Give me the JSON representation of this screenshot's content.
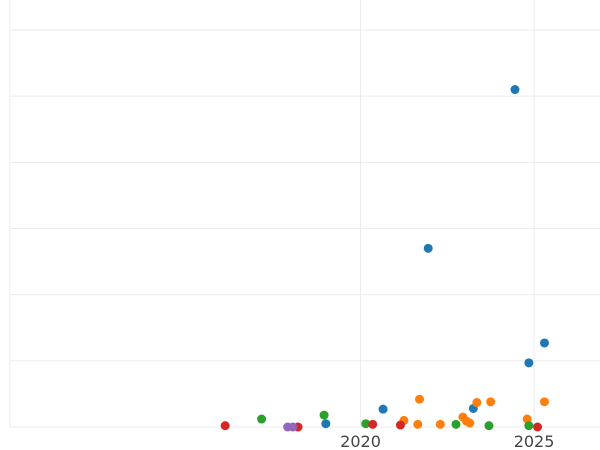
{
  "chart_data": {
    "type": "scatter",
    "title": "",
    "xlabel": "",
    "ylabel": "",
    "xlim": [
      2009.9,
      2026.9
    ],
    "ylim": [
      0,
      6.45
    ],
    "grid": true,
    "legend": "none",
    "x_ticks": [
      2020,
      2025
    ],
    "x_tick_labels": [
      "2020",
      "2025"
    ],
    "y_gridlines": [
      0,
      1,
      2,
      3,
      4,
      5,
      6
    ],
    "series": [
      {
        "color": "#1f77b4",
        "points": [
          {
            "x": 2019.0,
            "y": 0.05
          },
          {
            "x": 2020.65,
            "y": 0.27
          },
          {
            "x": 2021.95,
            "y": 2.7
          },
          {
            "x": 2023.25,
            "y": 0.28
          },
          {
            "x": 2024.45,
            "y": 5.1
          },
          {
            "x": 2024.85,
            "y": 0.97
          },
          {
            "x": 2025.3,
            "y": 1.27
          }
        ]
      },
      {
        "color": "#ff7f0e",
        "points": [
          {
            "x": 2021.25,
            "y": 0.1
          },
          {
            "x": 2021.7,
            "y": 0.42
          },
          {
            "x": 2021.65,
            "y": 0.04
          },
          {
            "x": 2022.3,
            "y": 0.04
          },
          {
            "x": 2022.95,
            "y": 0.15
          },
          {
            "x": 2023.05,
            "y": 0.09
          },
          {
            "x": 2023.15,
            "y": 0.06
          },
          {
            "x": 2023.35,
            "y": 0.37
          },
          {
            "x": 2023.75,
            "y": 0.38
          },
          {
            "x": 2024.8,
            "y": 0.12
          },
          {
            "x": 2025.3,
            "y": 0.38
          }
        ]
      },
      {
        "color": "#2ca02c",
        "points": [
          {
            "x": 2017.15,
            "y": 0.12
          },
          {
            "x": 2018.95,
            "y": 0.18
          },
          {
            "x": 2020.15,
            "y": 0.05
          },
          {
            "x": 2022.75,
            "y": 0.04
          },
          {
            "x": 2023.7,
            "y": 0.02
          },
          {
            "x": 2024.85,
            "y": 0.02
          }
        ]
      },
      {
        "color": "#d62728",
        "points": [
          {
            "x": 2016.1,
            "y": 0.02
          },
          {
            "x": 2018.2,
            "y": 0.0
          },
          {
            "x": 2020.35,
            "y": 0.04
          },
          {
            "x": 2021.15,
            "y": 0.03
          },
          {
            "x": 2025.1,
            "y": 0.0
          }
        ]
      },
      {
        "color": "#9467bd",
        "points": [
          {
            "x": 2017.9,
            "y": 0.0
          },
          {
            "x": 2018.05,
            "y": 0.0
          }
        ]
      }
    ]
  }
}
